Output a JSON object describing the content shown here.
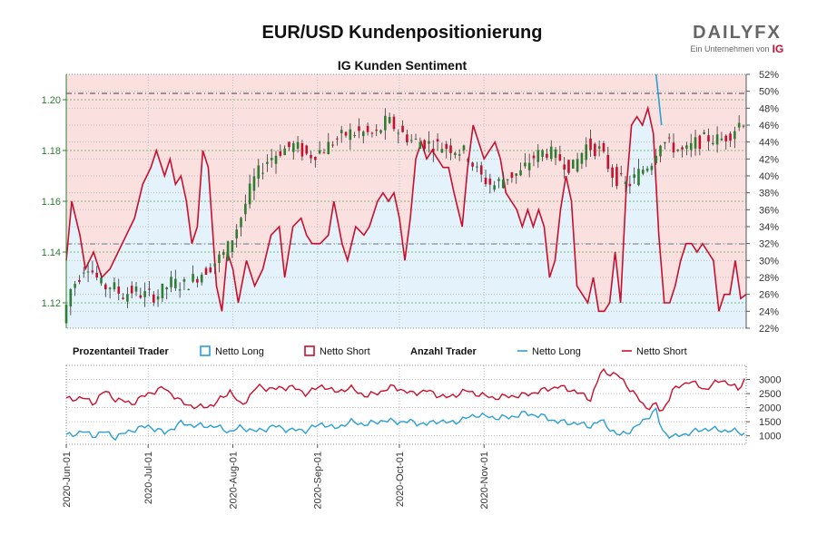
{
  "title": "EUR/USD Kundenpositionierung",
  "logo": {
    "text": "DAILYFX",
    "tagline": "Ein Unternehmen von",
    "brand": "IG"
  },
  "colors": {
    "netto_long": "#2a9fd6",
    "netto_short": "#c8102e",
    "candle_up": "#2e7d32",
    "candle_down": "#c8102e",
    "area_long": "#e3f2fb",
    "area_short": "#fbe0e0"
  },
  "chart_data": [
    {
      "type": "candlestick",
      "title": "IG Kunden Sentiment",
      "left_axis": {
        "ylim": [
          1.11,
          1.21
        ],
        "ticks": [
          "1.12",
          "1.14",
          "1.16",
          "1.18",
          "1.20"
        ]
      },
      "right_axis": {
        "ylim": [
          22,
          52
        ],
        "ticks": [
          "22%",
          "24%",
          "26%",
          "28%",
          "30%",
          "32%",
          "34%",
          "36%",
          "38%",
          "40%",
          "42%",
          "44%",
          "46%",
          "48%",
          "50%",
          "52%"
        ]
      },
      "reference_lines": [
        1.2025,
        1.1432
      ],
      "x_ticks": [
        "2020-Jun-01",
        "2020-Jul-01",
        "2020-Aug-01",
        "2020-Sep-01",
        "2020-Oct-01",
        "2020-Nov-01"
      ],
      "series_short_pct": [
        {
          "d": 0,
          "v": 30
        },
        {
          "d": 2,
          "v": 37
        },
        {
          "d": 5,
          "v": 33
        },
        {
          "d": 7,
          "v": 29
        },
        {
          "d": 10,
          "v": 31
        },
        {
          "d": 13,
          "v": 28
        },
        {
          "d": 16,
          "v": 29
        },
        {
          "d": 19,
          "v": 31
        },
        {
          "d": 22,
          "v": 33
        },
        {
          "d": 25,
          "v": 35
        },
        {
          "d": 28,
          "v": 39
        },
        {
          "d": 31,
          "v": 41
        },
        {
          "d": 33,
          "v": 43
        },
        {
          "d": 36,
          "v": 40
        },
        {
          "d": 38,
          "v": 42
        },
        {
          "d": 40,
          "v": 39
        },
        {
          "d": 42,
          "v": 40
        },
        {
          "d": 44,
          "v": 37
        },
        {
          "d": 46,
          "v": 32
        },
        {
          "d": 48,
          "v": 34
        },
        {
          "d": 50,
          "v": 43
        },
        {
          "d": 52,
          "v": 41
        },
        {
          "d": 55,
          "v": 27
        },
        {
          "d": 57,
          "v": 24
        },
        {
          "d": 59,
          "v": 31
        },
        {
          "d": 61,
          "v": 29
        },
        {
          "d": 63,
          "v": 25
        },
        {
          "d": 66,
          "v": 30
        },
        {
          "d": 69,
          "v": 27
        },
        {
          "d": 72,
          "v": 29
        },
        {
          "d": 75,
          "v": 33
        },
        {
          "d": 78,
          "v": 34
        },
        {
          "d": 80,
          "v": 28
        },
        {
          "d": 83,
          "v": 34
        },
        {
          "d": 86,
          "v": 35
        },
        {
          "d": 88,
          "v": 33
        },
        {
          "d": 90,
          "v": 32
        },
        {
          "d": 93,
          "v": 32
        },
        {
          "d": 96,
          "v": 33
        },
        {
          "d": 98,
          "v": 37
        },
        {
          "d": 101,
          "v": 32
        },
        {
          "d": 103,
          "v": 30
        },
        {
          "d": 106,
          "v": 34
        },
        {
          "d": 109,
          "v": 33
        },
        {
          "d": 111,
          "v": 34
        },
        {
          "d": 114,
          "v": 37
        },
        {
          "d": 116,
          "v": 38
        },
        {
          "d": 118,
          "v": 37
        },
        {
          "d": 120,
          "v": 38
        },
        {
          "d": 122,
          "v": 35
        },
        {
          "d": 124,
          "v": 30
        },
        {
          "d": 126,
          "v": 35
        },
        {
          "d": 128,
          "v": 42
        },
        {
          "d": 130,
          "v": 44
        },
        {
          "d": 132,
          "v": 42
        },
        {
          "d": 134,
          "v": 43
        },
        {
          "d": 136,
          "v": 42
        },
        {
          "d": 138,
          "v": 41
        },
        {
          "d": 140,
          "v": 41
        },
        {
          "d": 142,
          "v": 38
        },
        {
          "d": 145,
          "v": 34
        },
        {
          "d": 147,
          "v": 41
        },
        {
          "d": 149,
          "v": 46
        },
        {
          "d": 151,
          "v": 44
        },
        {
          "d": 153,
          "v": 42
        },
        {
          "d": 155,
          "v": 43
        },
        {
          "d": 157,
          "v": 44
        },
        {
          "d": 159,
          "v": 42
        },
        {
          "d": 161,
          "v": 38
        },
        {
          "d": 163,
          "v": 37
        },
        {
          "d": 165,
          "v": 36
        },
        {
          "d": 167,
          "v": 34
        },
        {
          "d": 169,
          "v": 36
        },
        {
          "d": 171,
          "v": 34
        },
        {
          "d": 173,
          "v": 36
        },
        {
          "d": 175,
          "v": 34
        },
        {
          "d": 177,
          "v": 28
        },
        {
          "d": 179,
          "v": 30
        },
        {
          "d": 181,
          "v": 36
        },
        {
          "d": 183,
          "v": 40
        },
        {
          "d": 185,
          "v": 37
        },
        {
          "d": 187,
          "v": 27
        },
        {
          "d": 189,
          "v": 26
        },
        {
          "d": 191,
          "v": 25
        },
        {
          "d": 193,
          "v": 28
        },
        {
          "d": 195,
          "v": 24
        },
        {
          "d": 197,
          "v": 24
        },
        {
          "d": 199,
          "v": 25
        },
        {
          "d": 201,
          "v": 31
        },
        {
          "d": 203,
          "v": 25
        },
        {
          "d": 205,
          "v": 38
        },
        {
          "d": 207,
          "v": 46
        },
        {
          "d": 209,
          "v": 47
        },
        {
          "d": 211,
          "v": 46
        },
        {
          "d": 213,
          "v": 48
        },
        {
          "d": 215,
          "v": 45
        },
        {
          "d": 217,
          "v": 33
        },
        {
          "d": 219,
          "v": 25
        },
        {
          "d": 221,
          "v": 25
        },
        {
          "d": 223,
          "v": 27
        },
        {
          "d": 225,
          "v": 30
        },
        {
          "d": 227,
          "v": 32
        },
        {
          "d": 229,
          "v": 32
        },
        {
          "d": 231,
          "v": 31
        },
        {
          "d": 233,
          "v": 32
        },
        {
          "d": 235,
          "v": 31
        },
        {
          "d": 237,
          "v": 30
        },
        {
          "d": 239,
          "v": 24
        },
        {
          "d": 241,
          "v": 26
        },
        {
          "d": 243,
          "v": 26
        },
        {
          "d": 245,
          "v": 30
        },
        {
          "d": 247,
          "v": 25.5
        },
        {
          "d": 249,
          "v": 26
        }
      ],
      "spike": [
        {
          "d": 216,
          "v": 52
        },
        {
          "d": 218,
          "v": 46
        }
      ],
      "price_key": [
        {
          "d": 0,
          "v": 1.112
        },
        {
          "d": 3,
          "v": 1.125
        },
        {
          "d": 6,
          "v": 1.13
        },
        {
          "d": 9,
          "v": 1.136
        },
        {
          "d": 12,
          "v": 1.131
        },
        {
          "d": 15,
          "v": 1.126
        },
        {
          "d": 18,
          "v": 1.127
        },
        {
          "d": 22,
          "v": 1.123
        },
        {
          "d": 26,
          "v": 1.125
        },
        {
          "d": 30,
          "v": 1.123
        },
        {
          "d": 35,
          "v": 1.123
        },
        {
          "d": 40,
          "v": 1.128
        },
        {
          "d": 45,
          "v": 1.127
        },
        {
          "d": 50,
          "v": 1.131
        },
        {
          "d": 55,
          "v": 1.135
        },
        {
          "d": 60,
          "v": 1.14
        },
        {
          "d": 65,
          "v": 1.152
        },
        {
          "d": 70,
          "v": 1.168
        },
        {
          "d": 75,
          "v": 1.176
        },
        {
          "d": 80,
          "v": 1.18
        },
        {
          "d": 85,
          "v": 1.182
        },
        {
          "d": 90,
          "v": 1.178
        },
        {
          "d": 95,
          "v": 1.18
        },
        {
          "d": 100,
          "v": 1.184
        },
        {
          "d": 105,
          "v": 1.187
        },
        {
          "d": 110,
          "v": 1.187
        },
        {
          "d": 115,
          "v": 1.186
        },
        {
          "d": 119,
          "v": 1.192
        },
        {
          "d": 123,
          "v": 1.188
        },
        {
          "d": 128,
          "v": 1.184
        },
        {
          "d": 133,
          "v": 1.183
        },
        {
          "d": 138,
          "v": 1.182
        },
        {
          "d": 143,
          "v": 1.181
        },
        {
          "d": 148,
          "v": 1.179
        },
        {
          "d": 153,
          "v": 1.17
        },
        {
          "d": 158,
          "v": 1.166
        },
        {
          "d": 163,
          "v": 1.17
        },
        {
          "d": 168,
          "v": 1.171
        },
        {
          "d": 172,
          "v": 1.177
        },
        {
          "d": 177,
          "v": 1.18
        },
        {
          "d": 182,
          "v": 1.177
        },
        {
          "d": 187,
          "v": 1.173
        },
        {
          "d": 192,
          "v": 1.182
        },
        {
          "d": 197,
          "v": 1.18
        },
        {
          "d": 202,
          "v": 1.17
        },
        {
          "d": 207,
          "v": 1.166
        },
        {
          "d": 212,
          "v": 1.172
        },
        {
          "d": 216,
          "v": 1.176
        },
        {
          "d": 219,
          "v": 1.184
        },
        {
          "d": 223,
          "v": 1.182
        },
        {
          "d": 228,
          "v": 1.179
        },
        {
          "d": 232,
          "v": 1.183
        },
        {
          "d": 237,
          "v": 1.185
        },
        {
          "d": 241,
          "v": 1.184
        },
        {
          "d": 245,
          "v": 1.187
        },
        {
          "d": 249,
          "v": 1.192
        }
      ]
    },
    {
      "type": "line",
      "title": "Anzahl Trader",
      "ylim": [
        700,
        3500
      ],
      "ticks": [
        "1000",
        "1500",
        "2000",
        "2500",
        "3000"
      ],
      "series": [
        {
          "name": "Netto Short",
          "points": [
            {
              "d": 0,
              "v": 2300
            },
            {
              "d": 6,
              "v": 2350
            },
            {
              "d": 10,
              "v": 2150
            },
            {
              "d": 14,
              "v": 2600
            },
            {
              "d": 18,
              "v": 2300
            },
            {
              "d": 24,
              "v": 2150
            },
            {
              "d": 30,
              "v": 2500
            },
            {
              "d": 36,
              "v": 2700
            },
            {
              "d": 42,
              "v": 2200
            },
            {
              "d": 48,
              "v": 2000
            },
            {
              "d": 54,
              "v": 2100
            },
            {
              "d": 60,
              "v": 2600
            },
            {
              "d": 64,
              "v": 2050
            },
            {
              "d": 70,
              "v": 2750
            },
            {
              "d": 76,
              "v": 2650
            },
            {
              "d": 82,
              "v": 2750
            },
            {
              "d": 88,
              "v": 2500
            },
            {
              "d": 94,
              "v": 2800
            },
            {
              "d": 98,
              "v": 2550
            },
            {
              "d": 104,
              "v": 2700
            },
            {
              "d": 110,
              "v": 2400
            },
            {
              "d": 116,
              "v": 2600
            },
            {
              "d": 120,
              "v": 2750
            },
            {
              "d": 126,
              "v": 2500
            },
            {
              "d": 132,
              "v": 2600
            },
            {
              "d": 136,
              "v": 2450
            },
            {
              "d": 140,
              "v": 2350
            },
            {
              "d": 146,
              "v": 2600
            },
            {
              "d": 150,
              "v": 2500
            },
            {
              "d": 156,
              "v": 2350
            },
            {
              "d": 162,
              "v": 2400
            },
            {
              "d": 168,
              "v": 2450
            },
            {
              "d": 174,
              "v": 2600
            },
            {
              "d": 180,
              "v": 2750
            },
            {
              "d": 186,
              "v": 2600
            },
            {
              "d": 192,
              "v": 2300
            },
            {
              "d": 196,
              "v": 3300
            },
            {
              "d": 202,
              "v": 3150
            },
            {
              "d": 208,
              "v": 2500
            },
            {
              "d": 212,
              "v": 2000
            },
            {
              "d": 216,
              "v": 2100
            },
            {
              "d": 218,
              "v": 1800
            },
            {
              "d": 222,
              "v": 2600
            },
            {
              "d": 228,
              "v": 2950
            },
            {
              "d": 234,
              "v": 2650
            },
            {
              "d": 240,
              "v": 3000
            },
            {
              "d": 246,
              "v": 2650
            },
            {
              "d": 249,
              "v": 3100
            }
          ]
        },
        {
          "name": "Netto Long",
          "points": [
            {
              "d": 0,
              "v": 1000
            },
            {
              "d": 6,
              "v": 1150
            },
            {
              "d": 10,
              "v": 1000
            },
            {
              "d": 14,
              "v": 1150
            },
            {
              "d": 18,
              "v": 950
            },
            {
              "d": 24,
              "v": 1200
            },
            {
              "d": 30,
              "v": 1350
            },
            {
              "d": 36,
              "v": 1100
            },
            {
              "d": 42,
              "v": 1450
            },
            {
              "d": 48,
              "v": 1350
            },
            {
              "d": 54,
              "v": 1350
            },
            {
              "d": 60,
              "v": 1150
            },
            {
              "d": 64,
              "v": 1300
            },
            {
              "d": 70,
              "v": 1150
            },
            {
              "d": 76,
              "v": 1350
            },
            {
              "d": 82,
              "v": 1200
            },
            {
              "d": 88,
              "v": 1200
            },
            {
              "d": 94,
              "v": 1450
            },
            {
              "d": 98,
              "v": 1250
            },
            {
              "d": 104,
              "v": 1500
            },
            {
              "d": 110,
              "v": 1400
            },
            {
              "d": 116,
              "v": 1550
            },
            {
              "d": 120,
              "v": 1500
            },
            {
              "d": 126,
              "v": 1500
            },
            {
              "d": 132,
              "v": 1400
            },
            {
              "d": 136,
              "v": 1550
            },
            {
              "d": 140,
              "v": 1450
            },
            {
              "d": 146,
              "v": 1600
            },
            {
              "d": 150,
              "v": 1750
            },
            {
              "d": 156,
              "v": 1650
            },
            {
              "d": 162,
              "v": 1650
            },
            {
              "d": 168,
              "v": 1800
            },
            {
              "d": 174,
              "v": 1700
            },
            {
              "d": 180,
              "v": 1500
            },
            {
              "d": 186,
              "v": 1450
            },
            {
              "d": 192,
              "v": 1350
            },
            {
              "d": 196,
              "v": 1550
            },
            {
              "d": 202,
              "v": 1000
            },
            {
              "d": 208,
              "v": 1250
            },
            {
              "d": 212,
              "v": 1600
            },
            {
              "d": 216,
              "v": 1900
            },
            {
              "d": 218,
              "v": 1200
            },
            {
              "d": 222,
              "v": 950
            },
            {
              "d": 228,
              "v": 1100
            },
            {
              "d": 234,
              "v": 1250
            },
            {
              "d": 240,
              "v": 1200
            },
            {
              "d": 246,
              "v": 1150
            },
            {
              "d": 249,
              "v": 1050
            }
          ]
        }
      ]
    }
  ],
  "legend": {
    "group1": "Prozentanteil Trader",
    "group2": "Anzahl Trader",
    "netto_long": "Netto Long",
    "netto_short": "Netto Short"
  }
}
